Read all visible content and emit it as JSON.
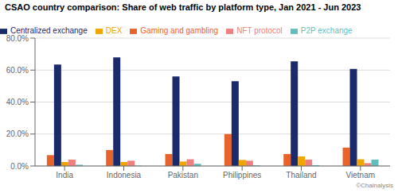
{
  "chart_data": {
    "type": "bar",
    "title": "CSAO country comparison: Share of web traffic by platform type, Jan 2021 - Jun 2023",
    "categories": [
      "India",
      "Indonesia",
      "Pakistan",
      "Philippines",
      "Thailand",
      "Vietnam"
    ],
    "series": [
      {
        "name": "Gaming and gambling",
        "color": "#E8622A",
        "values": [
          0.068,
          0.1,
          0.075,
          0.2,
          0.075,
          0.115
        ]
      },
      {
        "name": "Centralized exchange",
        "color": "#1B2A6B",
        "values": [
          0.635,
          0.68,
          0.56,
          0.53,
          0.655,
          0.608
        ]
      },
      {
        "name": "DEX",
        "color": "#F0A500",
        "values": [
          0.025,
          0.025,
          0.028,
          0.038,
          0.06,
          0.042
        ]
      },
      {
        "name": "NFT protocol",
        "color": "#F08080",
        "values": [
          0.04,
          0.033,
          0.042,
          0.033,
          0.04,
          0.018
        ]
      },
      {
        "name": "P2P exchange",
        "color": "#5FBFBF",
        "values": [
          0.008,
          0.002,
          0.014,
          0.004,
          0.005,
          0.04
        ]
      }
    ],
    "ylim": [
      0,
      0.8
    ],
    "yticks": [
      {
        "value": 0.0,
        "label": "0.0%"
      },
      {
        "value": 0.2,
        "label": "20.0%"
      },
      {
        "value": 0.4,
        "label": "40.0%"
      },
      {
        "value": 0.6,
        "label": "60.0%"
      },
      {
        "value": 0.8,
        "label": "80.0%"
      }
    ],
    "grid": true,
    "legend": "upper left",
    "annotations": [
      "©Chainalysis"
    ]
  }
}
